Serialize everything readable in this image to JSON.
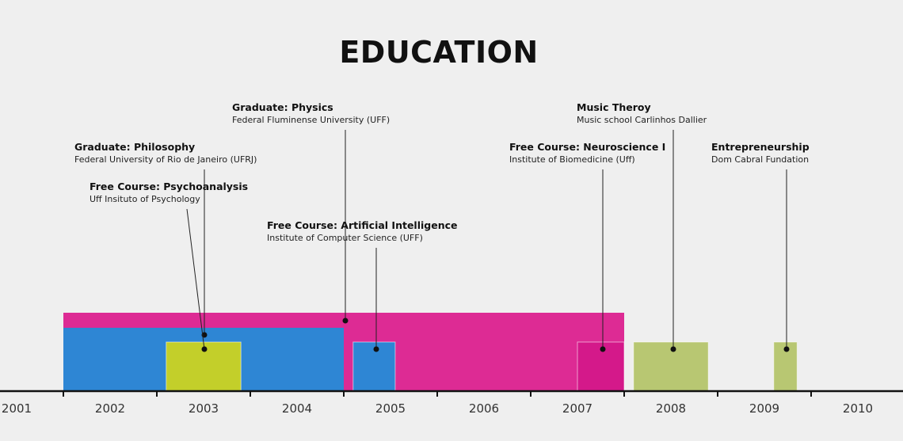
{
  "title": "EDUCATION",
  "years": [
    "2001",
    "2002",
    "2003",
    "2004",
    "2005",
    "2006",
    "2007",
    "2008",
    "2009",
    "2010"
  ],
  "colors": {
    "blue": "#2e86d4",
    "magenta": "#dd2b94",
    "deep_magenta": "#d4198a",
    "lime": "#c3cf2a",
    "olive": "#b8c772",
    "axis": "#111111",
    "background": "#efefef"
  },
  "entries": [
    {
      "id": "philosophy",
      "title": "Graduate: Philosophy",
      "subtitle": "Federal University of Rio de Janeiro (UFRJ)",
      "start": 2001.5,
      "end": 2004.5,
      "color": "blue"
    },
    {
      "id": "psychoanalysis",
      "title": "Free Course: Psychoanalysis",
      "subtitle": "Uff Insituto of Psychology",
      "start": 2002.6,
      "end": 2003.4,
      "color": "lime"
    },
    {
      "id": "physics",
      "title": "Graduate: Physics",
      "subtitle": "Federal Fluminense University (UFF)",
      "start": 2001.5,
      "end": 2007.5,
      "color": "magenta"
    },
    {
      "id": "ai",
      "title": "Free Course: Artificial Intelligence",
      "subtitle": "Institute of Computer Science (UFF)",
      "start": 2004.6,
      "end": 2005.05,
      "color": "blue"
    },
    {
      "id": "neuroscience",
      "title": "Free Course: Neuroscience I",
      "subtitle": "Institute of Biomedicine (Uff)",
      "start": 2007.0,
      "end": 2007.5,
      "color": "deep_magenta"
    },
    {
      "id": "music",
      "title": "Music Theroy",
      "subtitle": "Music school Carlinhos Dallier",
      "start": 2007.6,
      "end": 2008.4,
      "color": "olive"
    },
    {
      "id": "entrepreneurship",
      "title": "Entrepreneurship",
      "subtitle": "Dom Cabral Fundation",
      "start": 2009.1,
      "end": 2009.35,
      "color": "olive"
    }
  ]
}
